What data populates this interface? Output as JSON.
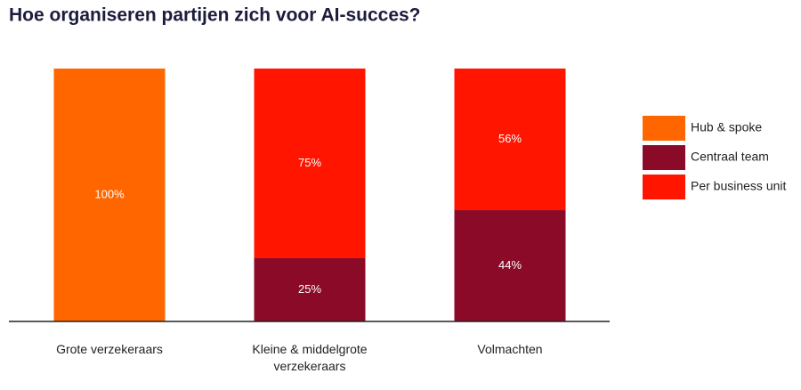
{
  "chart_data": {
    "type": "stacked_bar",
    "title": "Hoe organiseren partijen zich voor AI-succes?",
    "categories": [
      "Grote verzekeraars",
      "Kleine & middelgrote verzekeraars",
      "Volmachten"
    ],
    "series": [
      {
        "name": "Hub & spoke",
        "color": "#ff6600",
        "values": [
          100,
          null,
          null
        ],
        "value_labels": [
          "100%",
          null,
          null
        ]
      },
      {
        "name": "Centraal team",
        "color": "#8b0a28",
        "values": [
          null,
          25,
          44
        ],
        "value_labels": [
          null,
          "25%",
          "44%"
        ]
      },
      {
        "name": "Per business unit",
        "color": "#ff1500",
        "values": [
          null,
          75,
          56
        ],
        "value_labels": [
          null,
          "75%",
          "56%"
        ]
      }
    ]
  }
}
